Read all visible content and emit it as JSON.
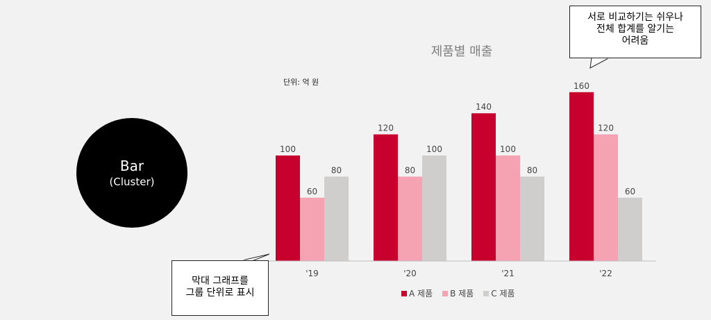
{
  "badge": {
    "line1": "Bar",
    "line2": "(Cluster)"
  },
  "callouts": {
    "top": "서로 비교하기는 쉬우나\n전체 합계를 알기는\n어려움",
    "bottom": "막대 그래프를\n그룹 단위로 표시"
  },
  "chart_data": {
    "type": "bar",
    "title": "제품별 매출",
    "unit_label": "단위: 억 원",
    "categories": [
      "'19",
      "'20",
      "'21",
      "'22"
    ],
    "series": [
      {
        "name": "A 제품",
        "color": "#c8002d",
        "values": [
          100,
          120,
          140,
          160
        ]
      },
      {
        "name": "B 제품",
        "color": "#f5a3b3",
        "values": [
          60,
          80,
          100,
          120
        ]
      },
      {
        "name": "C 제품",
        "color": "#d0cdcd",
        "values": [
          80,
          100,
          80,
          60
        ]
      }
    ],
    "ylim": [
      0,
      160
    ],
    "grid": false,
    "legend_position": "bottom"
  }
}
